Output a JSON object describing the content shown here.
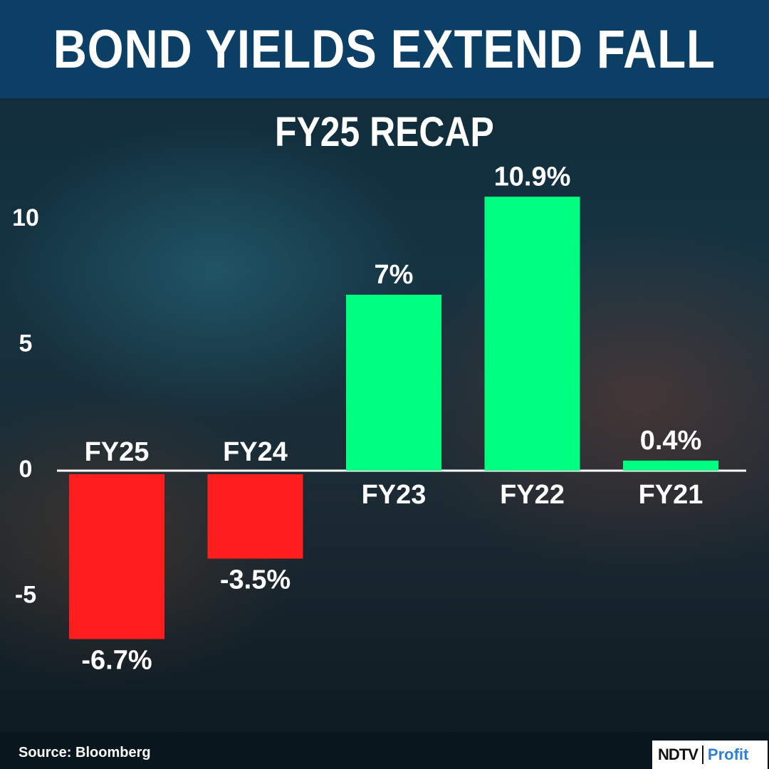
{
  "header": {
    "title": "BOND YIELDS EXTEND FALL"
  },
  "source": "Source: Bloomberg",
  "logo": {
    "ndtv": "NDTV",
    "profit": "Profit"
  },
  "colors": {
    "positive": "#00ff80",
    "negative": "#ff1e1e",
    "title_bar": "#0b3f66"
  },
  "chart_data": {
    "type": "bar",
    "title": "FY25 RECAP",
    "categories": [
      "FY25",
      "FY24",
      "FY23",
      "FY22",
      "FY21"
    ],
    "values": [
      -6.7,
      -3.5,
      7,
      10.9,
      0.4
    ],
    "data_labels": [
      "-6.7%",
      "-3.5%",
      "7%",
      "10.9%",
      "0.4%"
    ],
    "y_ticks": [
      10,
      5,
      0,
      -5
    ],
    "ylim": [
      -10,
      12
    ],
    "grid": false,
    "xlabel": "",
    "ylabel": ""
  }
}
